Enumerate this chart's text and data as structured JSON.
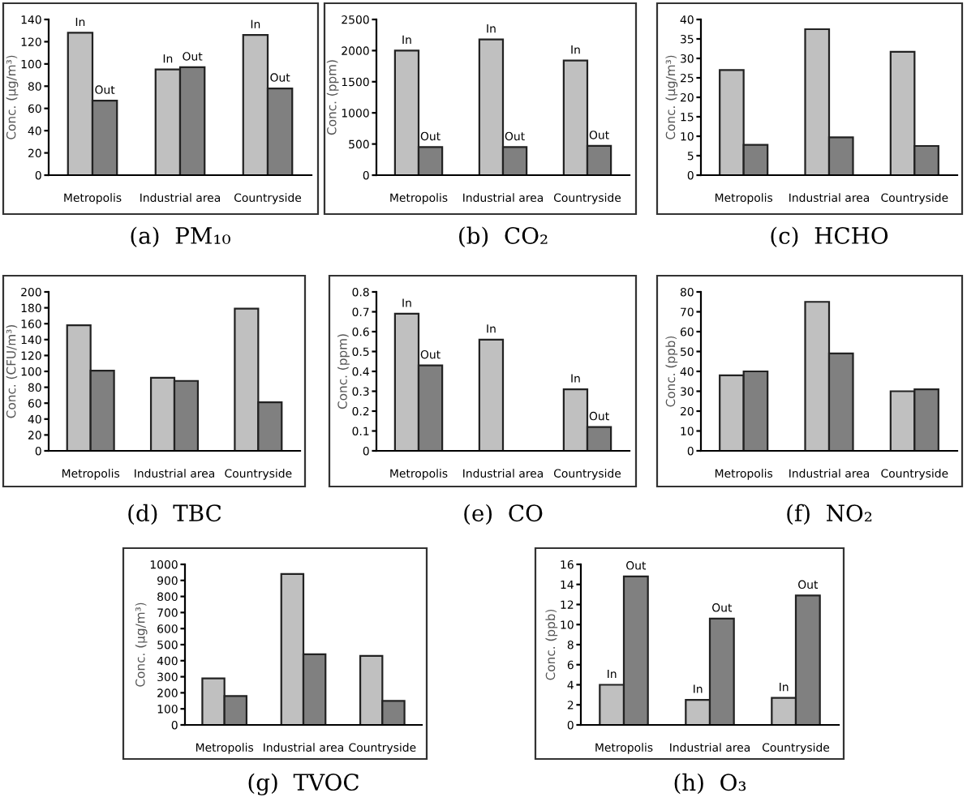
{
  "chart_data": [
    {
      "type": "bar",
      "title": "(a)  PM₁₀",
      "ylabel": "Conc. (μg/m³)",
      "categories": [
        "Metropolis",
        "Industrial area",
        "Countryside"
      ],
      "ylim": [
        0,
        140
      ],
      "yticks": [
        0,
        20,
        40,
        60,
        80,
        100,
        120,
        140
      ],
      "series": [
        {
          "name": "In",
          "color": "#c0c0c0",
          "values": [
            128,
            95,
            126
          ]
        },
        {
          "name": "Out",
          "color": "#808080",
          "values": [
            67,
            97,
            78
          ]
        }
      ]
    },
    {
      "type": "bar",
      "title": "(b)  CO₂",
      "ylabel": "Conc. (ppm)",
      "categories": [
        "Metropolis",
        "Industrial area",
        "Countryside"
      ],
      "ylim": [
        0,
        2500
      ],
      "yticks": [
        0,
        500,
        1000,
        1500,
        2000,
        2500
      ],
      "series": [
        {
          "name": "In",
          "color": "#c0c0c0",
          "values": [
            2000,
            2180,
            1840
          ]
        },
        {
          "name": "Out",
          "color": "#808080",
          "values": [
            450,
            450,
            470
          ]
        }
      ]
    },
    {
      "type": "bar",
      "title": "(c)  HCHO",
      "ylabel": "Conc. (μg/m³)",
      "categories": [
        "Metropolis",
        "Industrial area",
        "Countryside"
      ],
      "ylim": [
        0,
        40
      ],
      "yticks": [
        0,
        5,
        10,
        15,
        20,
        25,
        30,
        35,
        40
      ],
      "series": [
        {
          "color": "#c0c0c0",
          "values": [
            27,
            37.5,
            31.7
          ]
        },
        {
          "color": "#808080",
          "values": [
            7.8,
            9.7,
            7.5
          ]
        }
      ]
    },
    {
      "type": "bar",
      "title": "(d)  TBC",
      "ylabel": "Conc. (CFU/m³)",
      "categories": [
        "Metropolis",
        "Industrial area",
        "Countryside"
      ],
      "ylim": [
        0,
        200
      ],
      "yticks": [
        0,
        20,
        40,
        60,
        80,
        100,
        120,
        140,
        160,
        180,
        200
      ],
      "series": [
        {
          "color": "#c0c0c0",
          "values": [
            158,
            92,
            179
          ]
        },
        {
          "color": "#808080",
          "values": [
            101,
            88,
            61
          ]
        }
      ]
    },
    {
      "type": "bar",
      "title": "(e)  CO",
      "ylabel": "Conc. (ppm)",
      "categories": [
        "Metropolis",
        "Industrial area",
        "Countryside"
      ],
      "ylim": [
        0,
        0.8
      ],
      "yticks": [
        0,
        0.1,
        0.2,
        0.3,
        0.4,
        0.5,
        0.6,
        0.7,
        0.8
      ],
      "series": [
        {
          "name": "In",
          "color": "#c0c0c0",
          "values": [
            0.69,
            0.56,
            0.31
          ]
        },
        {
          "name": "Out",
          "color": "#808080",
          "values": [
            0.43,
            null,
            0.12
          ]
        }
      ]
    },
    {
      "type": "bar",
      "title": "(f)  NO₂",
      "ylabel": "Conc. (ppb)",
      "categories": [
        "Metropolis",
        "Industrial area",
        "Countryside"
      ],
      "ylim": [
        0,
        80
      ],
      "yticks": [
        0,
        10,
        20,
        30,
        40,
        50,
        60,
        70,
        80
      ],
      "series": [
        {
          "color": "#c0c0c0",
          "values": [
            38,
            75,
            30
          ]
        },
        {
          "color": "#808080",
          "values": [
            40,
            49,
            31
          ]
        }
      ]
    },
    {
      "type": "bar",
      "title": "(g)  TVOC",
      "ylabel": "Conc. (μg/m³)",
      "categories": [
        "Metropolis",
        "Industrial area",
        "Countryside"
      ],
      "ylim": [
        0,
        1000
      ],
      "yticks": [
        0,
        100,
        200,
        300,
        400,
        500,
        600,
        700,
        800,
        900,
        1000
      ],
      "series": [
        {
          "color": "#c0c0c0",
          "values": [
            290,
            940,
            430
          ]
        },
        {
          "color": "#808080",
          "values": [
            180,
            440,
            150
          ]
        }
      ]
    },
    {
      "type": "bar",
      "title": "(h)  O₃",
      "ylabel": "Conc. (ppb)",
      "categories": [
        "Metropolis",
        "Industrial area",
        "Countryside"
      ],
      "ylim": [
        0,
        16
      ],
      "yticks": [
        0,
        2,
        4,
        6,
        8,
        10,
        12,
        14,
        16
      ],
      "series": [
        {
          "name": "In",
          "color": "#c0c0c0",
          "values": [
            4.0,
            2.5,
            2.7
          ]
        },
        {
          "name": "Out",
          "color": "#808080",
          "values": [
            14.8,
            10.6,
            12.9
          ]
        }
      ]
    }
  ]
}
